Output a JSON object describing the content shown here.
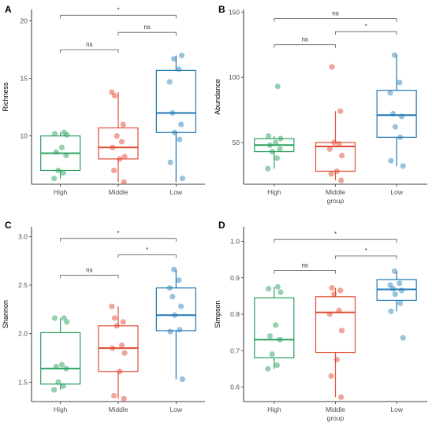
{
  "chart_data": [
    {
      "type": "box",
      "panel_label": "A",
      "ylabel": "Richness",
      "xlabel": "",
      "categories": [
        "High",
        "Middle",
        "Low"
      ],
      "yticks": [
        10,
        15,
        20
      ],
      "ylim": [
        5.8,
        21
      ],
      "colors": [
        "#2ca25f",
        "#e34a33",
        "#1f78b4"
      ],
      "boxes": [
        {
          "group": "High",
          "q1": 7.0,
          "median": 8.5,
          "q3": 10.0,
          "whisker_low": 6.3,
          "whisker_high": 10.3
        },
        {
          "group": "Middle",
          "q1": 8.0,
          "median": 9.0,
          "q3": 10.7,
          "whisker_low": 6.0,
          "whisker_high": 13.8
        },
        {
          "group": "Low",
          "q1": 10.3,
          "median": 12.0,
          "q3": 15.7,
          "whisker_low": 6.0,
          "whisker_high": 17.0
        }
      ],
      "points": [
        [
          6.3,
          6.8,
          7.0,
          8.3,
          8.6,
          9.0,
          10.1,
          10.2,
          10.3
        ],
        [
          6.0,
          7.0,
          8.0,
          8.2,
          9.0,
          9.5,
          10.0,
          11.0,
          13.5,
          13.8
        ],
        [
          6.3,
          7.7,
          9.7,
          10.3,
          11.0,
          12.0,
          14.7,
          15.8,
          16.7,
          17.0
        ]
      ],
      "comparisons": [
        {
          "groups": [
            "High",
            "Middle"
          ],
          "label": "ns",
          "y": 17.5
        },
        {
          "groups": [
            "Middle",
            "Low"
          ],
          "label": "ns",
          "y": 19.0
        },
        {
          "groups": [
            "High",
            "Low"
          ],
          "label": "*",
          "y": 20.5
        }
      ]
    },
    {
      "type": "box",
      "panel_label": "B",
      "ylabel": "Abundance",
      "xlabel": "group",
      "categories": [
        "High",
        "Middle",
        "Low"
      ],
      "yticks": [
        50,
        100,
        150
      ],
      "ylim": [
        18,
        152
      ],
      "colors": [
        "#2ca25f",
        "#e34a33",
        "#1f78b4"
      ],
      "boxes": [
        {
          "group": "High",
          "q1": 43,
          "median": 48,
          "q3": 53,
          "whisker_low": 30,
          "whisker_high": 55
        },
        {
          "group": "Middle",
          "q1": 28,
          "median": 47,
          "q3": 50,
          "whisker_low": 21,
          "whisker_high": 74
        },
        {
          "group": "Low",
          "q1": 54,
          "median": 71,
          "q3": 90,
          "whisker_low": 32,
          "whisker_high": 117
        }
      ],
      "points": [
        [
          30,
          38,
          43,
          45,
          48,
          50,
          53,
          55,
          93
        ],
        [
          21,
          26,
          28,
          40,
          45,
          49,
          50,
          74,
          108
        ],
        [
          32,
          36,
          54,
          62,
          70,
          72,
          88,
          96,
          117
        ]
      ],
      "comparisons": [
        {
          "groups": [
            "High",
            "Middle"
          ],
          "label": "ns",
          "y": 125
        },
        {
          "groups": [
            "Middle",
            "Low"
          ],
          "label": "*",
          "y": 135
        },
        {
          "groups": [
            "High",
            "Low"
          ],
          "label": "ns",
          "y": 145
        }
      ]
    },
    {
      "type": "box",
      "panel_label": "C",
      "ylabel": "Shannon",
      "xlabel": "",
      "categories": [
        "High",
        "Middle",
        "Low"
      ],
      "yticks": [
        1.5,
        2.0,
        2.5,
        3.0
      ],
      "ylim": [
        1.3,
        3.1
      ],
      "colors": [
        "#2ca25f",
        "#e34a33",
        "#1f78b4"
      ],
      "boxes": [
        {
          "group": "High",
          "q1": 1.48,
          "median": 1.64,
          "q3": 2.01,
          "whisker_low": 1.42,
          "whisker_high": 2.16
        },
        {
          "group": "Middle",
          "q1": 1.61,
          "median": 1.85,
          "q3": 2.08,
          "whisker_low": 1.33,
          "whisker_high": 2.28
        },
        {
          "group": "Low",
          "q1": 2.03,
          "median": 2.19,
          "q3": 2.47,
          "whisker_low": 1.53,
          "whisker_high": 2.66
        }
      ],
      "points": [
        [
          1.42,
          1.46,
          1.5,
          1.64,
          1.66,
          1.68,
          2.12,
          2.16,
          2.16
        ],
        [
          1.33,
          1.36,
          1.61,
          1.8,
          1.85,
          1.88,
          2.08,
          2.12,
          2.16,
          2.28
        ],
        [
          1.53,
          2.02,
          2.04,
          2.19,
          2.28,
          2.38,
          2.47,
          2.55,
          2.66
        ]
      ],
      "comparisons": [
        {
          "groups": [
            "High",
            "Middle"
          ],
          "label": "ns",
          "y": 2.6
        },
        {
          "groups": [
            "Middle",
            "Low"
          ],
          "label": "*",
          "y": 2.81
        },
        {
          "groups": [
            "High",
            "Low"
          ],
          "label": "*",
          "y": 2.98
        }
      ]
    },
    {
      "type": "box",
      "panel_label": "D",
      "ylabel": "Simpson",
      "xlabel": "group",
      "categories": [
        "High",
        "Middle",
        "Low"
      ],
      "yticks": [
        0.6,
        0.7,
        0.8,
        0.9,
        1.0
      ],
      "ylim": [
        0.56,
        1.04
      ],
      "colors": [
        "#2ca25f",
        "#e34a33",
        "#1f78b4"
      ],
      "boxes": [
        {
          "group": "High",
          "q1": 0.68,
          "median": 0.73,
          "q3": 0.845,
          "whisker_low": 0.65,
          "whisker_high": 0.875
        },
        {
          "group": "Middle",
          "q1": 0.695,
          "median": 0.805,
          "q3": 0.848,
          "whisker_low": 0.572,
          "whisker_high": 0.872
        },
        {
          "group": "Low",
          "q1": 0.838,
          "median": 0.868,
          "q3": 0.895,
          "whisker_low": 0.808,
          "whisker_high": 0.918
        }
      ],
      "points": [
        [
          0.65,
          0.66,
          0.69,
          0.73,
          0.74,
          0.77,
          0.86,
          0.87,
          0.875
        ],
        [
          0.572,
          0.63,
          0.675,
          0.755,
          0.8,
          0.81,
          0.855,
          0.865,
          0.872
        ],
        [
          0.735,
          0.808,
          0.83,
          0.855,
          0.865,
          0.87,
          0.88,
          0.885,
          0.918
        ]
      ],
      "comparisons": [
        {
          "groups": [
            "High",
            "Middle"
          ],
          "label": "ns",
          "y": 0.92
        },
        {
          "groups": [
            "Middle",
            "Low"
          ],
          "label": "*",
          "y": 0.96
        },
        {
          "groups": [
            "High",
            "Low"
          ],
          "label": "*",
          "y": 1.005
        }
      ]
    }
  ]
}
